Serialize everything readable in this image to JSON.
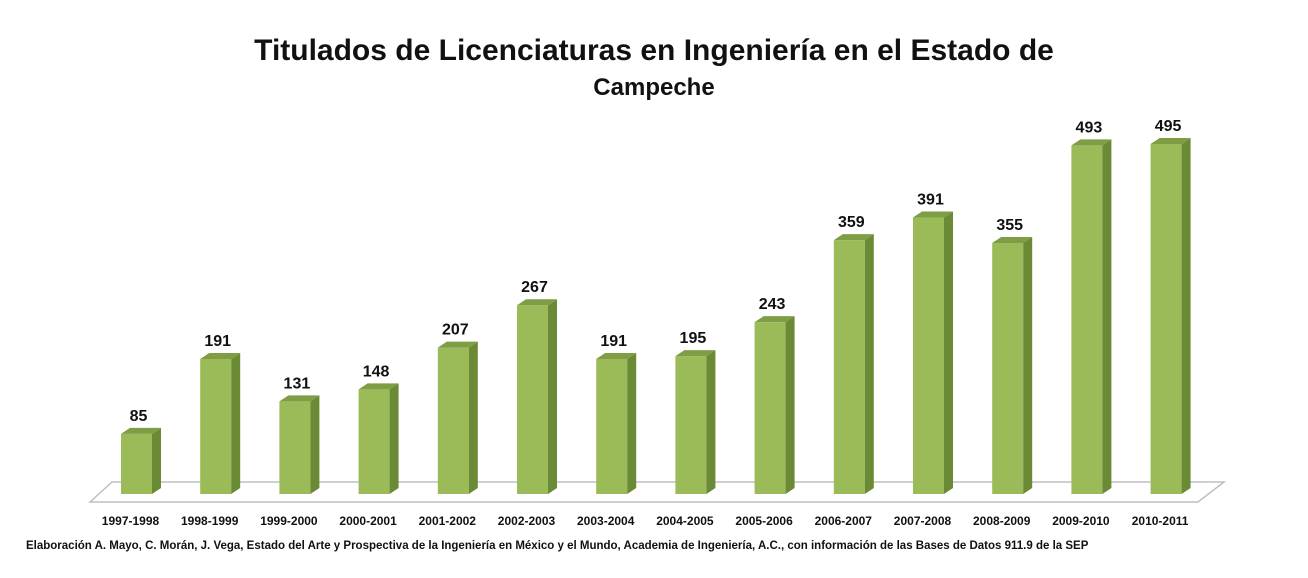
{
  "chart_data": {
    "type": "bar",
    "title_line1": "Titulados de Licenciaturas en Ingeniería en el Estado de",
    "title_line2": "Campeche",
    "categories": [
      "1997-1998",
      "1998-1999",
      "1999-2000",
      "2000-2001",
      "2001-2002",
      "2002-2003",
      "2003-2004",
      "2004-2005",
      "2005-2006",
      "2006-2007",
      "2007-2008",
      "2008-2009",
      "2009-2010",
      "2010-2011"
    ],
    "values": [
      85,
      191,
      131,
      148,
      207,
      267,
      191,
      195,
      243,
      359,
      391,
      355,
      493,
      495
    ],
    "xlabel": "",
    "ylabel": "",
    "ylim": [
      0,
      500
    ],
    "grid": false,
    "legend": "none",
    "colors": {
      "bar_front": "#9BBB59",
      "bar_side": "#6B8A35",
      "bar_top": "#7E9D45",
      "floor": "#FFFFFF",
      "floor_edge": "#BFBFBF"
    }
  },
  "source_note": "Elaboración A. Mayo, C. Morán, J. Vega, Estado del Arte y Prospectiva de la Ingeniería en México y el Mundo, Academia de Ingeniería, A.C., con información de las Bases de Datos  911.9  de la SEP"
}
